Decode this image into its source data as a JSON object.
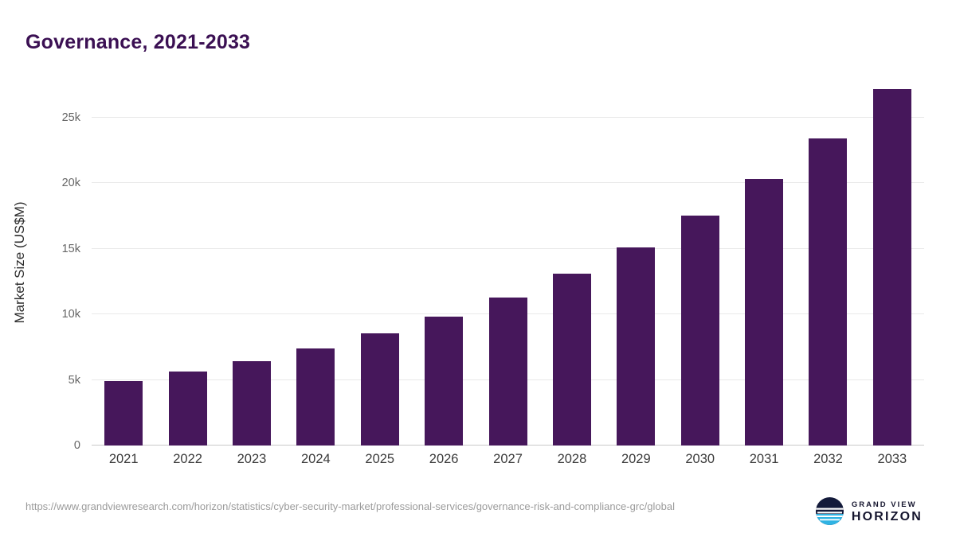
{
  "chart_data": {
    "type": "bar",
    "title": "Governance, 2021-2033",
    "categories": [
      "2021",
      "2022",
      "2023",
      "2024",
      "2025",
      "2026",
      "2027",
      "2028",
      "2029",
      "2030",
      "2031",
      "2032",
      "2033"
    ],
    "values": [
      4900,
      5650,
      6450,
      7400,
      8550,
      9800,
      11300,
      13100,
      15100,
      17500,
      20300,
      23400,
      27200
    ],
    "ylabel": "Market Size (US$M)",
    "xlabel": "",
    "ylim": [
      0,
      27900
    ],
    "yticks": [
      {
        "value": 0,
        "label": "0"
      },
      {
        "value": 5000,
        "label": "5k"
      },
      {
        "value": 10000,
        "label": "10k"
      },
      {
        "value": 15000,
        "label": "15k"
      },
      {
        "value": 20000,
        "label": "20k"
      },
      {
        "value": 25000,
        "label": "25k"
      }
    ],
    "grid": "horizontal",
    "legend": "none",
    "bar_color": "#46175B"
  },
  "footer": {
    "source": "https://www.grandviewresearch.com/horizon/statistics/cyber-security-market/professional-services/governance-risk-and-compliance-grc/global",
    "logo": {
      "line1": "GRAND VIEW",
      "line2": "HORIZON"
    }
  },
  "colors": {
    "title": "#3B1053",
    "bar": "#46175B",
    "logo_navy": "#131A3A",
    "logo_cyan": "#2FB3E3"
  }
}
